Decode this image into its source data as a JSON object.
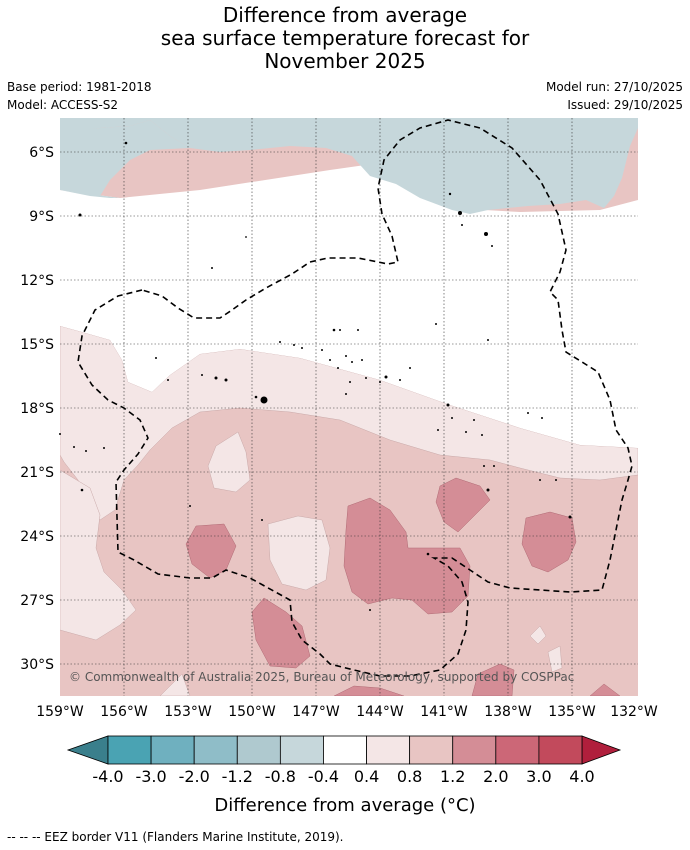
{
  "title": {
    "line1": "Difference from average",
    "line2": "sea surface temperature forecast for",
    "line3": "November 2025"
  },
  "meta": {
    "base_period": "Base period: 1981-2018",
    "model": "Model: ACCESS-S2",
    "model_run": "Model run: 27/10/2025",
    "issued": "Issued: 29/10/2025"
  },
  "map": {
    "lon_ticks": [
      "159°W",
      "156°W",
      "153°W",
      "150°W",
      "147°W",
      "144°W",
      "141°W",
      "138°W",
      "135°W",
      "132°W"
    ],
    "lat_ticks": [
      "6°S",
      "9°S",
      "12°S",
      "15°S",
      "18°S",
      "21°S",
      "24°S",
      "27°S",
      "30°S"
    ],
    "copyright": "© Commonwealth of Australia 2025, Bureau of Meteorology, supported by COSPPac"
  },
  "colorbar": {
    "labels": [
      "-4.0",
      "-3.0",
      "-2.0",
      "-1.2",
      "-0.8",
      "-0.4",
      "0.4",
      "0.8",
      "1.2",
      "2.0",
      "3.0",
      "4.0"
    ],
    "colors": [
      "#4aa3b3",
      "#6fb0bf",
      "#8fbdc8",
      "#afc9cf",
      "#c6d7db",
      "#ffffff",
      "#f4e6e6",
      "#e8c5c3",
      "#d48d96",
      "#cc6777",
      "#c24a5c"
    ],
    "low_color": "#3a7f8c",
    "high_color": "#b01f3c",
    "title": "Difference from average (°C)"
  },
  "footnote": "-- -- -- EEZ border V11 (Flanders Marine Institute, 2019)."
}
